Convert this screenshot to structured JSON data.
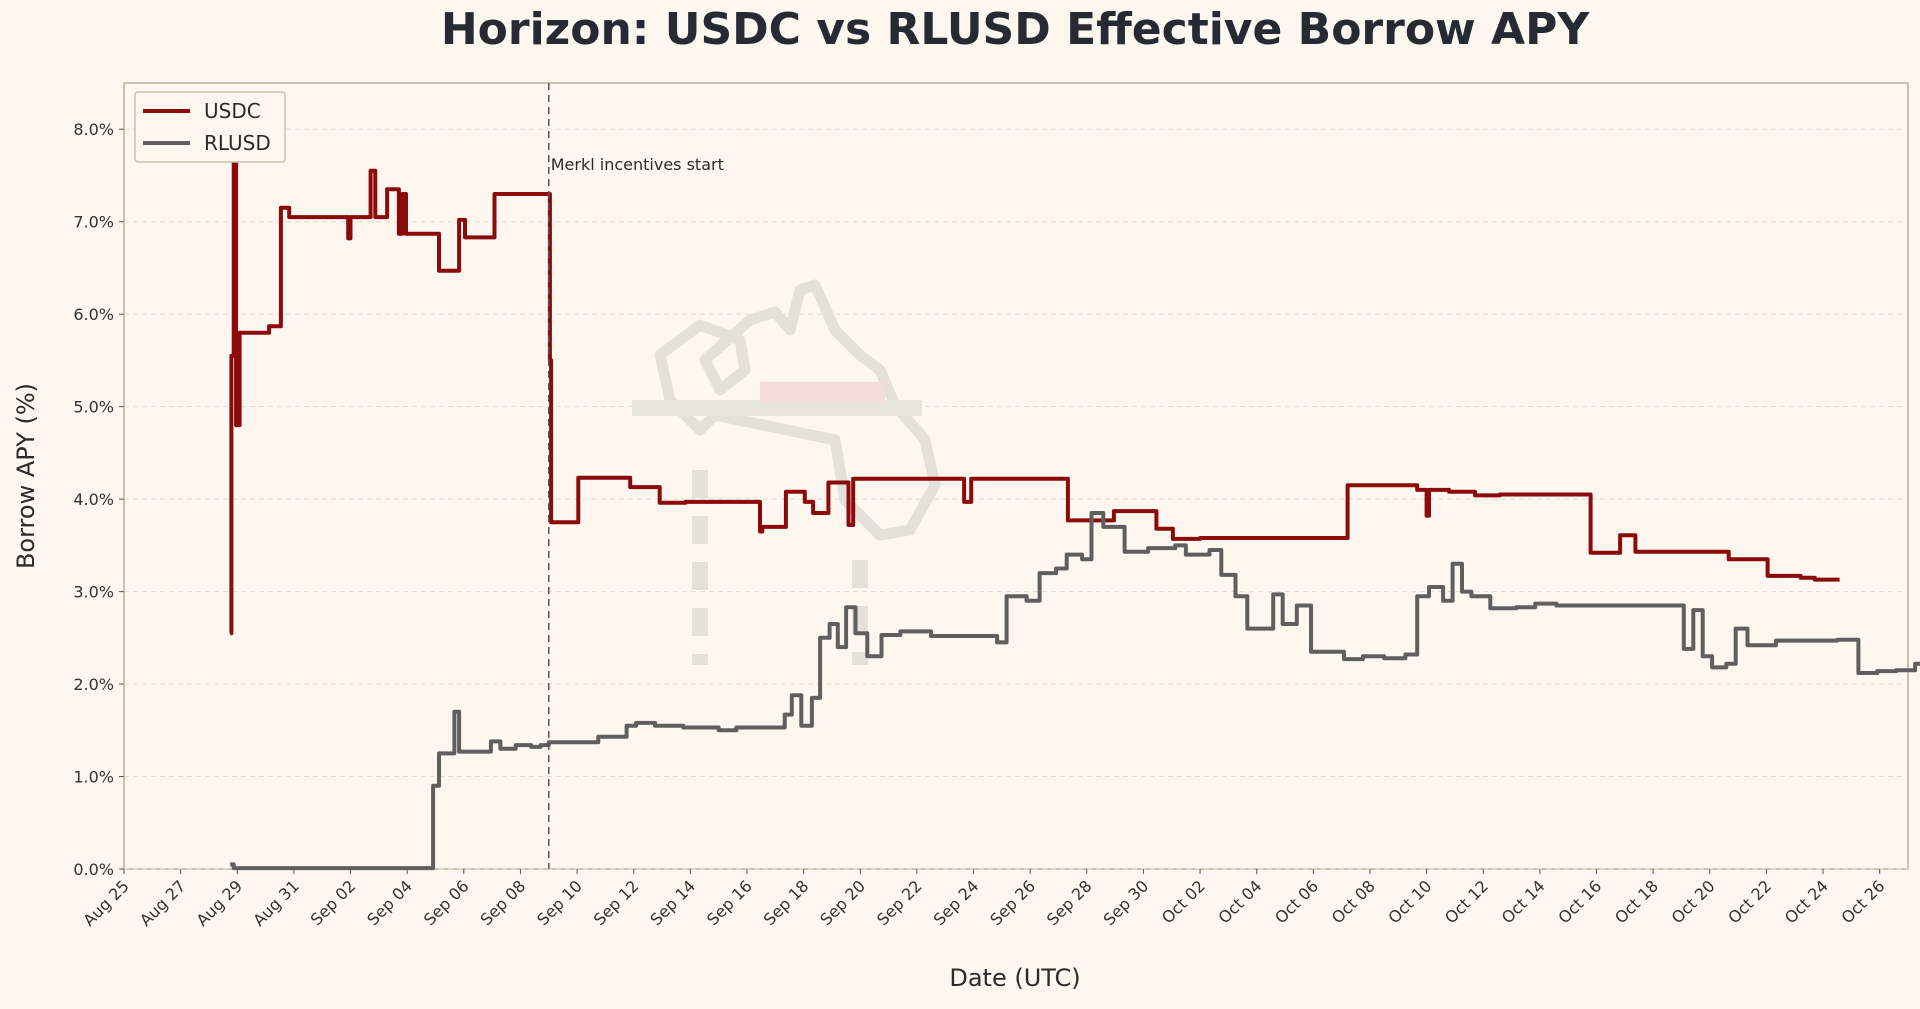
{
  "chart_data": {
    "type": "line",
    "title": "Horizon: USDC vs RLUSD Effective Borrow APY",
    "xlabel": "Date (UTC)",
    "ylabel": "Borrow APY (%)",
    "x_axis": "date",
    "xlim": [
      "2025-08-25",
      "2025-10-27"
    ],
    "ylim": [
      0,
      8.5
    ],
    "y_ticks": [
      0,
      1,
      2,
      3,
      4,
      5,
      6,
      7,
      8
    ],
    "y_tick_labels": [
      "0.0%",
      "1.0%",
      "2.0%",
      "3.0%",
      "4.0%",
      "5.0%",
      "6.0%",
      "7.0%",
      "8.0%"
    ],
    "x_ticks": [
      "2025-08-25",
      "2025-08-27",
      "2025-08-29",
      "2025-08-31",
      "2025-09-02",
      "2025-09-04",
      "2025-09-06",
      "2025-09-08",
      "2025-09-10",
      "2025-09-12",
      "2025-09-14",
      "2025-09-16",
      "2025-09-18",
      "2025-09-20",
      "2025-09-22",
      "2025-09-24",
      "2025-09-26",
      "2025-09-28",
      "2025-09-30",
      "2025-10-02",
      "2025-10-04",
      "2025-10-06",
      "2025-10-08",
      "2025-10-10",
      "2025-10-12",
      "2025-10-14",
      "2025-10-16",
      "2025-10-18",
      "2025-10-20",
      "2025-10-22",
      "2025-10-24",
      "2025-10-26"
    ],
    "x_tick_labels": [
      "Aug 25",
      "Aug 27",
      "Aug 29",
      "Aug 31",
      "Sep 02",
      "Sep 04",
      "Sep 06",
      "Sep 08",
      "Sep 10",
      "Sep 12",
      "Sep 14",
      "Sep 16",
      "Sep 18",
      "Sep 20",
      "Sep 22",
      "Sep 24",
      "Sep 26",
      "Sep 28",
      "Sep 30",
      "Oct 02",
      "Oct 04",
      "Oct 06",
      "Oct 08",
      "Oct 10",
      "Oct 12",
      "Oct 14",
      "Oct 16",
      "Oct 18",
      "Oct 20",
      "Oct 22",
      "Oct 24",
      "Oct 26"
    ],
    "grid": "horizontal dashed",
    "legend_position": "top-left",
    "annotations": [
      {
        "x": "2025-09-09 00:00",
        "text": "Merkl incentives start",
        "style": "vertical dashed line"
      }
    ],
    "series": [
      {
        "name": "USDC",
        "color": "#8b0a0a",
        "step": true,
        "points": [
          [
            "2025-08-28 18:00",
            2.55
          ],
          [
            "2025-08-28 19:00",
            5.55
          ],
          [
            "2025-08-28 21:00",
            7.7
          ],
          [
            "2025-08-28 23:00",
            4.8
          ],
          [
            "2025-08-29 02:00",
            5.8
          ],
          [
            "2025-08-30 03:00",
            5.87
          ],
          [
            "2025-08-30 13:00",
            7.15
          ],
          [
            "2025-08-30 20:00",
            7.05
          ],
          [
            "2025-09-01 22:00",
            6.82
          ],
          [
            "2025-09-02 00:00",
            7.05
          ],
          [
            "2025-09-02 17:00",
            7.55
          ],
          [
            "2025-09-02 21:00",
            7.05
          ],
          [
            "2025-09-03 07:00",
            7.35
          ],
          [
            "2025-09-03 17:00",
            6.87
          ],
          [
            "2025-09-03 20:00",
            7.3
          ],
          [
            "2025-09-03 23:00",
            6.87
          ],
          [
            "2025-09-05 03:00",
            6.47
          ],
          [
            "2025-09-05 20:00",
            7.02
          ],
          [
            "2025-09-06 01:00",
            6.83
          ],
          [
            "2025-09-07 02:00",
            7.3
          ],
          [
            "2025-09-09 01:00",
            5.5
          ],
          [
            "2025-09-09 02:00",
            3.75
          ],
          [
            "2025-09-10 01:00",
            4.23
          ],
          [
            "2025-09-11 21:00",
            4.13
          ],
          [
            "2025-09-12 22:00",
            3.96
          ],
          [
            "2025-09-13 20:00",
            3.97
          ],
          [
            "2025-09-16 11:00",
            3.65
          ],
          [
            "2025-09-16 13:00",
            3.7
          ],
          [
            "2025-09-17 09:00",
            4.08
          ],
          [
            "2025-09-18 01:00",
            3.97
          ],
          [
            "2025-09-18 08:00",
            3.85
          ],
          [
            "2025-09-18 21:00",
            4.18
          ],
          [
            "2025-09-19 14:00",
            3.72
          ],
          [
            "2025-09-19 18:00",
            4.22
          ],
          [
            "2025-09-23 16:00",
            3.97
          ],
          [
            "2025-09-23 22:00",
            4.22
          ],
          [
            "2025-09-27 08:00",
            3.77
          ],
          [
            "2025-09-28 23:00",
            3.87
          ],
          [
            "2025-09-30 11:00",
            3.68
          ],
          [
            "2025-10-01 01:00",
            3.57
          ],
          [
            "2025-10-02 00:00",
            3.58
          ],
          [
            "2025-10-07 05:00",
            4.15
          ],
          [
            "2025-10-09 16:00",
            4.1
          ],
          [
            "2025-10-10 00:00",
            3.82
          ],
          [
            "2025-10-10 02:00",
            4.1
          ],
          [
            "2025-10-10 19:00",
            4.08
          ],
          [
            "2025-10-11 17:00",
            4.04
          ],
          [
            "2025-10-12 14:00",
            4.05
          ],
          [
            "2025-10-15 19:00",
            3.42
          ],
          [
            "2025-10-16 20:00",
            3.61
          ],
          [
            "2025-10-17 09:00",
            3.43
          ],
          [
            "2025-10-20 16:00",
            3.35
          ],
          [
            "2025-10-22 01:00",
            3.17
          ],
          [
            "2025-10-23 05:00",
            3.15
          ],
          [
            "2025-10-23 17:00",
            3.13
          ],
          [
            "2025-10-24 14:00",
            3.13
          ]
        ]
      },
      {
        "name": "RLUSD",
        "color": "#5f5f5f",
        "step": true,
        "points": [
          [
            "2025-08-28 18:00",
            0.05
          ],
          [
            "2025-08-28 21:00",
            0.01
          ],
          [
            "2025-09-04 22:00",
            0.9
          ],
          [
            "2025-09-05 03:00",
            1.25
          ],
          [
            "2025-09-05 16:00",
            1.7
          ],
          [
            "2025-09-05 20:00",
            1.27
          ],
          [
            "2025-09-06 23:00",
            1.38
          ],
          [
            "2025-09-07 07:00",
            1.3
          ],
          [
            "2025-09-07 20:00",
            1.34
          ],
          [
            "2025-09-08 09:00",
            1.32
          ],
          [
            "2025-09-08 17:00",
            1.34
          ],
          [
            "2025-09-09 00:00",
            1.37
          ],
          [
            "2025-09-10 18:00",
            1.43
          ],
          [
            "2025-09-11 18:00",
            1.55
          ],
          [
            "2025-09-12 02:00",
            1.58
          ],
          [
            "2025-09-12 18:00",
            1.55
          ],
          [
            "2025-09-13 18:00",
            1.53
          ],
          [
            "2025-09-15 00:00",
            1.5
          ],
          [
            "2025-09-15 15:00",
            1.53
          ],
          [
            "2025-09-17 08:00",
            1.67
          ],
          [
            "2025-09-17 14:00",
            1.88
          ],
          [
            "2025-09-17 22:00",
            1.55
          ],
          [
            "2025-09-18 07:00",
            1.85
          ],
          [
            "2025-09-18 14:00",
            2.5
          ],
          [
            "2025-09-18 22:00",
            2.65
          ],
          [
            "2025-09-19 05:00",
            2.4
          ],
          [
            "2025-09-19 12:00",
            2.83
          ],
          [
            "2025-09-19 20:00",
            2.55
          ],
          [
            "2025-09-20 06:00",
            2.3
          ],
          [
            "2025-09-20 18:00",
            2.53
          ],
          [
            "2025-09-21 10:00",
            2.57
          ],
          [
            "2025-09-22 12:00",
            2.52
          ],
          [
            "2025-09-24 20:00",
            2.45
          ],
          [
            "2025-09-25 04:00",
            2.95
          ],
          [
            "2025-09-25 21:00",
            2.9
          ],
          [
            "2025-09-26 08:00",
            3.2
          ],
          [
            "2025-09-26 22:00",
            3.25
          ],
          [
            "2025-09-27 07:00",
            3.4
          ],
          [
            "2025-09-27 20:00",
            3.35
          ],
          [
            "2025-09-28 04:00",
            3.85
          ],
          [
            "2025-09-28 14:00",
            3.7
          ],
          [
            "2025-09-29 08:00",
            3.43
          ],
          [
            "2025-09-30 04:00",
            3.47
          ],
          [
            "2025-10-01 03:00",
            3.5
          ],
          [
            "2025-10-01 12:00",
            3.4
          ],
          [
            "2025-10-02 08:00",
            3.45
          ],
          [
            "2025-10-02 18:00",
            3.18
          ],
          [
            "2025-10-03 06:00",
            2.95
          ],
          [
            "2025-10-03 16:00",
            2.6
          ],
          [
            "2025-10-04 14:00",
            2.97
          ],
          [
            "2025-10-04 22:00",
            2.65
          ],
          [
            "2025-10-05 10:00",
            2.85
          ],
          [
            "2025-10-05 22:00",
            2.35
          ],
          [
            "2025-10-07 02:00",
            2.27
          ],
          [
            "2025-10-07 18:00",
            2.3
          ],
          [
            "2025-10-08 12:00",
            2.28
          ],
          [
            "2025-10-09 06:00",
            2.32
          ],
          [
            "2025-10-09 16:00",
            2.95
          ],
          [
            "2025-10-10 02:00",
            3.05
          ],
          [
            "2025-10-10 14:00",
            2.9
          ],
          [
            "2025-10-10 22:00",
            3.3
          ],
          [
            "2025-10-11 06:00",
            3.0
          ],
          [
            "2025-10-11 14:00",
            2.95
          ],
          [
            "2025-10-12 06:00",
            2.82
          ],
          [
            "2025-10-13 04:00",
            2.83
          ],
          [
            "2025-10-13 20:00",
            2.87
          ],
          [
            "2025-10-14 14:00",
            2.85
          ],
          [
            "2025-10-19 02:00",
            2.38
          ],
          [
            "2025-10-19 10:00",
            2.8
          ],
          [
            "2025-10-19 18:00",
            2.3
          ],
          [
            "2025-10-20 02:00",
            2.18
          ],
          [
            "2025-10-20 14:00",
            2.22
          ],
          [
            "2025-10-20 22:00",
            2.6
          ],
          [
            "2025-10-21 08:00",
            2.42
          ],
          [
            "2025-10-22 08:00",
            2.47
          ],
          [
            "2025-10-24 12:00",
            2.48
          ],
          [
            "2025-10-25 06:00",
            2.12
          ],
          [
            "2025-10-25 22:00",
            2.14
          ],
          [
            "2025-10-26 14:00",
            2.15
          ],
          [
            "2025-10-27 06:00",
            2.22
          ],
          [
            "2025-10-27 16:00",
            2.08
          ]
        ]
      }
    ]
  }
}
